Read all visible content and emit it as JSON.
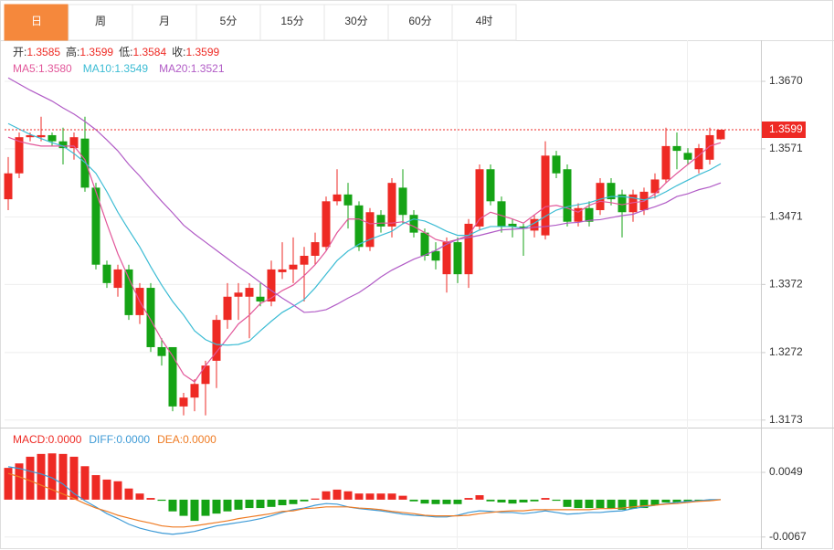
{
  "tabs": [
    "日",
    "周",
    "月",
    "5分",
    "15分",
    "30分",
    "60分",
    "4时"
  ],
  "chart_data": [
    {
      "type": "candlestick",
      "up_color": "#ee2a24",
      "down_color": "#15a315",
      "readout": [
        {
          "name": "开:",
          "value": "1.3585"
        },
        {
          "name": "高:",
          "value": "1.3599"
        },
        {
          "name": "低:",
          "value": "1.3584"
        },
        {
          "name": "收:",
          "value": "1.3599"
        }
      ],
      "open": [
        1.3497,
        1.3535,
        1.3588,
        1.3588,
        1.3591,
        1.3582,
        1.3572,
        1.3586,
        1.3514,
        1.3401,
        1.3367,
        1.3394,
        1.3327,
        1.3367,
        1.328,
        1.328,
        1.3193,
        1.3206,
        1.3226,
        1.326,
        1.332,
        1.3354,
        1.3354,
        1.3354,
        1.3347,
        1.339,
        1.3394,
        1.3401,
        1.3414,
        1.3427,
        1.3494,
        1.3504,
        1.3488,
        1.3427,
        1.3474,
        1.3457,
        1.3514,
        1.3474,
        1.3448,
        1.3421,
        1.3387,
        1.3434,
        1.3387,
        1.3457,
        1.3541,
        1.3494,
        1.3461,
        1.3457,
        1.3451,
        1.3444,
        1.3561,
        1.3541,
        1.3464,
        1.3484,
        1.3481,
        1.3521,
        1.3504,
        1.3478,
        1.3481,
        1.3506,
        1.3526,
        1.3575,
        1.3565,
        1.3541,
        1.3555,
        1.3585
      ],
      "high": [
        1.3559,
        1.3595,
        1.3595,
        1.3618,
        1.3595,
        1.3602,
        1.3595,
        1.3618,
        1.3521,
        1.3407,
        1.3401,
        1.3401,
        1.3374,
        1.3374,
        1.3293,
        1.328,
        1.3213,
        1.3233,
        1.326,
        1.3327,
        1.3374,
        1.3374,
        1.3374,
        1.3374,
        1.3407,
        1.3434,
        1.3441,
        1.3427,
        1.3448,
        1.3501,
        1.3541,
        1.3521,
        1.3494,
        1.3484,
        1.3481,
        1.3528,
        1.3541,
        1.3481,
        1.3454,
        1.3434,
        1.3441,
        1.3441,
        1.3468,
        1.3548,
        1.3548,
        1.3501,
        1.3468,
        1.3461,
        1.3474,
        1.3582,
        1.3568,
        1.3548,
        1.3491,
        1.3494,
        1.3528,
        1.3528,
        1.3511,
        1.3511,
        1.3514,
        1.3535,
        1.3602,
        1.3595,
        1.3572,
        1.3578,
        1.3602,
        1.3599
      ],
      "low": [
        1.3481,
        1.3528,
        1.3582,
        1.3582,
        1.3575,
        1.3548,
        1.3555,
        1.3508,
        1.3394,
        1.3367,
        1.3354,
        1.332,
        1.3314,
        1.3273,
        1.3253,
        1.3186,
        1.318,
        1.3186,
        1.318,
        1.322,
        1.3307,
        1.332,
        1.3293,
        1.334,
        1.334,
        1.338,
        1.3374,
        1.3347,
        1.3401,
        1.3421,
        1.3488,
        1.3454,
        1.3421,
        1.3421,
        1.3448,
        1.3441,
        1.3461,
        1.3441,
        1.3407,
        1.3394,
        1.336,
        1.3374,
        1.3367,
        1.3451,
        1.3488,
        1.3448,
        1.3441,
        1.3414,
        1.3441,
        1.3438,
        1.3528,
        1.3457,
        1.3457,
        1.3457,
        1.3474,
        1.3488,
        1.3441,
        1.3464,
        1.3474,
        1.3498,
        1.3521,
        1.3541,
        1.3548,
        1.3535,
        1.3548,
        1.3584
      ],
      "close": [
        1.3535,
        1.3588,
        1.3591,
        1.3591,
        1.3582,
        1.3572,
        1.3588,
        1.3514,
        1.3401,
        1.3374,
        1.3394,
        1.3327,
        1.3367,
        1.328,
        1.3267,
        1.3193,
        1.3206,
        1.3226,
        1.3253,
        1.332,
        1.3354,
        1.336,
        1.3367,
        1.3347,
        1.3394,
        1.3394,
        1.3401,
        1.3414,
        1.3434,
        1.3494,
        1.3504,
        1.3488,
        1.3427,
        1.3478,
        1.3457,
        1.3521,
        1.3474,
        1.3448,
        1.3414,
        1.3407,
        1.3434,
        1.3387,
        1.3461,
        1.3541,
        1.3494,
        1.3457,
        1.3457,
        1.3454,
        1.3468,
        1.3561,
        1.3535,
        1.3464,
        1.3484,
        1.3464,
        1.3521,
        1.3497,
        1.3478,
        1.3504,
        1.3508,
        1.3526,
        1.3575,
        1.3568,
        1.3555,
        1.3572,
        1.3591,
        1.3599
      ],
      "series": [
        {
          "name": "MA5:",
          "readout": "1.3580",
          "color": "#e2579a",
          "values": [
            1.3588,
            1.3582,
            1.3578,
            1.3575,
            1.3575,
            1.3575,
            1.3575,
            1.3555,
            1.3508,
            1.3461,
            1.3417,
            1.3381,
            1.3347,
            1.332,
            1.3291,
            1.3267,
            1.324,
            1.3229,
            1.3253,
            1.3273,
            1.3293,
            1.3314,
            1.3327,
            1.3344,
            1.3352,
            1.3363,
            1.3371,
            1.3385,
            1.3401,
            1.3421,
            1.3448,
            1.3468,
            1.3468,
            1.3461,
            1.3462,
            1.3462,
            1.3464,
            1.3457,
            1.3448,
            1.3438,
            1.3434,
            1.3438,
            1.3444,
            1.3468,
            1.3478,
            1.3473,
            1.3468,
            1.3462,
            1.3474,
            1.3486,
            1.3488,
            1.3484,
            1.3478,
            1.3488,
            1.3494,
            1.3492,
            1.3489,
            1.3492,
            1.3494,
            1.3505,
            1.3521,
            1.3535,
            1.3548,
            1.3561,
            1.3575,
            1.358
          ]
        },
        {
          "name": "MA10:",
          "readout": "1.3549",
          "color": "#3cbcd4",
          "values": [
            1.3608,
            1.36,
            1.3592,
            1.3586,
            1.358,
            1.3575,
            1.3564,
            1.3551,
            1.3535,
            1.3508,
            1.3478,
            1.3452,
            1.3427,
            1.3398,
            1.3371,
            1.3347,
            1.3327,
            1.3304,
            1.3291,
            1.3284,
            1.3283,
            1.3284,
            1.3289,
            1.3304,
            1.3318,
            1.3331,
            1.334,
            1.335,
            1.3367,
            1.3387,
            1.3407,
            1.3421,
            1.3431,
            1.3438,
            1.3444,
            1.345,
            1.3461,
            1.3468,
            1.3465,
            1.3458,
            1.345,
            1.3444,
            1.3444,
            1.3452,
            1.3457,
            1.3457,
            1.3457,
            1.3454,
            1.3462,
            1.3472,
            1.3481,
            1.3486,
            1.3489,
            1.3492,
            1.3497,
            1.3501,
            1.3501,
            1.3499,
            1.3496,
            1.35,
            1.3508,
            1.3517,
            1.3525,
            1.3533,
            1.354,
            1.3549
          ]
        },
        {
          "name": "MA20:",
          "readout": "1.3521",
          "color": "#b15bc6",
          "values": [
            1.3675,
            1.3666,
            1.3657,
            1.3649,
            1.3641,
            1.3631,
            1.3622,
            1.3611,
            1.3599,
            1.3584,
            1.3568,
            1.3548,
            1.3531,
            1.3512,
            1.3494,
            1.3477,
            1.3459,
            1.3446,
            1.3434,
            1.3422,
            1.341,
            1.3398,
            1.3387,
            1.3375,
            1.3363,
            1.3352,
            1.3342,
            1.3331,
            1.3332,
            1.3335,
            1.3343,
            1.3352,
            1.336,
            1.3371,
            1.3383,
            1.3393,
            1.3401,
            1.3409,
            1.3415,
            1.3422,
            1.3431,
            1.3438,
            1.3441,
            1.3444,
            1.3448,
            1.3452,
            1.3453,
            1.3454,
            1.3456,
            1.3457,
            1.3459,
            1.3462,
            1.3463,
            1.3466,
            1.3467,
            1.347,
            1.3473,
            1.3475,
            1.3481,
            1.3486,
            1.3492,
            1.3501,
            1.3505,
            1.3511,
            1.3515,
            1.3521
          ]
        }
      ],
      "ylim": [
        1.3162,
        1.3729
      ],
      "yticks": [
        {
          "value": 1.367,
          "label": "1.3670"
        },
        1.3571,
        1.3471,
        1.3372,
        1.3272,
        1.3173
      ],
      "grid": true
    },
    {
      "type": "macd",
      "up_color": "#ee2a24",
      "down_color": "#15a315",
      "readout": [
        {
          "name": "MACD:",
          "value": "0.0000"
        }
      ],
      "values": [
        0.0057,
        0.0065,
        0.0077,
        0.0082,
        0.0083,
        0.0082,
        0.0077,
        0.006,
        0.0044,
        0.0036,
        0.0033,
        0.002,
        0.0011,
        0.0003,
        -0.0002,
        -0.0021,
        -0.0029,
        -0.0038,
        -0.0029,
        -0.0025,
        -0.0021,
        -0.0018,
        -0.0015,
        -0.0015,
        -0.0013,
        -0.001,
        -0.0008,
        -0.0003,
        0.0002,
        0.0015,
        0.0018,
        0.0015,
        0.0011,
        0.0011,
        0.0011,
        0.0011,
        0.0007,
        -0.0003,
        -0.0007,
        -0.0008,
        -0.0008,
        -0.0008,
        0.0003,
        0.0008,
        -0.0003,
        -0.0005,
        -0.0007,
        -0.0005,
        -0.0003,
        0.0003,
        -0.0002,
        -0.0013,
        -0.0015,
        -0.0015,
        -0.0015,
        -0.0016,
        -0.0018,
        -0.0016,
        -0.0015,
        -0.001,
        -0.0005,
        -0.0005,
        -0.0005,
        -0.0002,
        -0.0002,
        0.0
      ],
      "series": [
        {
          "name": "DIFF:",
          "readout": "0.0000",
          "color": "#3d9ad6",
          "values": [
            0.0059,
            0.0056,
            0.0051,
            0.0046,
            0.0039,
            0.0028,
            0.0011,
            -0.0002,
            -0.0013,
            -0.0025,
            -0.0034,
            -0.0044,
            -0.0051,
            -0.0056,
            -0.006,
            -0.0062,
            -0.006,
            -0.0057,
            -0.0052,
            -0.0047,
            -0.0044,
            -0.0041,
            -0.0038,
            -0.0034,
            -0.0029,
            -0.0023,
            -0.0018,
            -0.0015,
            -0.001,
            -0.0007,
            -0.0008,
            -0.0013,
            -0.0016,
            -0.0018,
            -0.002,
            -0.0023,
            -0.0026,
            -0.0028,
            -0.0029,
            -0.0031,
            -0.0031,
            -0.0028,
            -0.0023,
            -0.002,
            -0.0021,
            -0.0023,
            -0.0023,
            -0.0025,
            -0.0023,
            -0.002,
            -0.0023,
            -0.0026,
            -0.0025,
            -0.0023,
            -0.0023,
            -0.0021,
            -0.002,
            -0.0016,
            -0.0013,
            -0.001,
            -0.0007,
            -0.0005,
            -0.0003,
            -0.0002,
            0.0,
            0.0
          ]
        },
        {
          "name": "DEA:",
          "readout": "0.0000",
          "color": "#ef7b23",
          "values": [
            0.0047,
            0.0041,
            0.0034,
            0.0026,
            0.0018,
            0.001,
            0.0002,
            -0.0007,
            -0.0015,
            -0.0021,
            -0.0028,
            -0.0033,
            -0.0038,
            -0.0042,
            -0.0047,
            -0.0049,
            -0.0049,
            -0.0047,
            -0.0044,
            -0.0041,
            -0.0038,
            -0.0034,
            -0.0031,
            -0.0028,
            -0.0025,
            -0.0021,
            -0.002,
            -0.0016,
            -0.0015,
            -0.0013,
            -0.0013,
            -0.0013,
            -0.0015,
            -0.0016,
            -0.0018,
            -0.0021,
            -0.0023,
            -0.0025,
            -0.0028,
            -0.0029,
            -0.0029,
            -0.0029,
            -0.0028,
            -0.0025,
            -0.0023,
            -0.0021,
            -0.002,
            -0.002,
            -0.0018,
            -0.0018,
            -0.0018,
            -0.0018,
            -0.0018,
            -0.0018,
            -0.0016,
            -0.0016,
            -0.0015,
            -0.0013,
            -0.0011,
            -0.001,
            -0.0008,
            -0.0007,
            -0.0005,
            -0.0003,
            -0.0002,
            0.0
          ]
        }
      ],
      "ylim": [
        -0.0087,
        0.0126
      ],
      "yticks": [
        0.0049,
        -0.0067
      ],
      "grid": true
    }
  ]
}
